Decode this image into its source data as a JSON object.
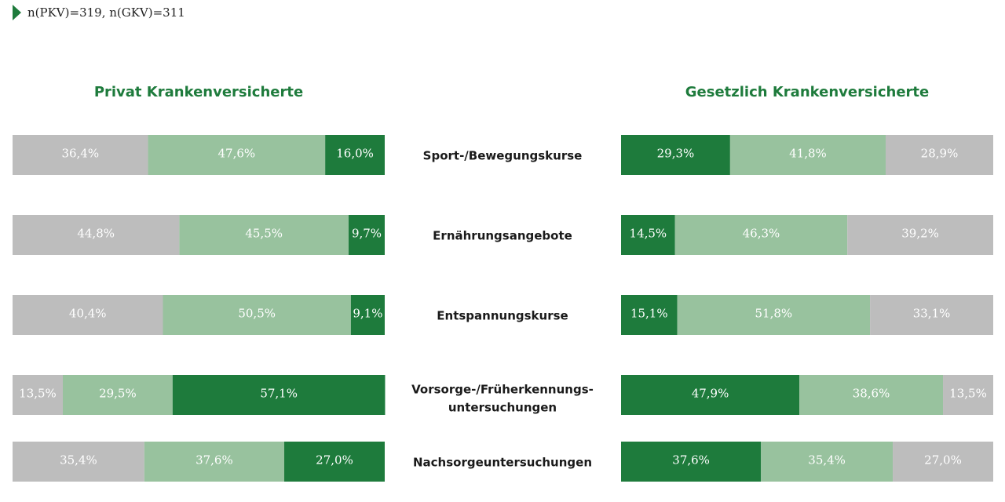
{
  "note": "n(PKV)=319, n(GKV)=311",
  "colors": {
    "gray": "#bdbdbd",
    "light_green": "#98c29e",
    "dark_green": "#1e7b3c",
    "title_green": "#1e7b3c"
  },
  "chart_data": [
    {
      "type": "bar",
      "orientation": "horizontal-stacked-100",
      "title": "Privat Krankenversicherte",
      "categories": [
        "Sport-/Bewegungskurse",
        "Ernährungsangebote",
        "Entspannungskurse",
        "Vorsorge-/Früherkennungs-untersuchungen",
        "Nachsorgeuntersuchungen"
      ],
      "series": [
        {
          "color": "gray",
          "values": [
            36.4,
            44.8,
            40.4,
            13.5,
            35.4
          ],
          "labels": [
            "36,4%",
            "44,8%",
            "40,4%",
            "13,5%",
            "35,4%"
          ]
        },
        {
          "color": "light_green",
          "values": [
            47.6,
            45.5,
            50.5,
            29.5,
            37.6
          ],
          "labels": [
            "47,6%",
            "45,5%",
            "50,5%",
            "29,5%",
            "37,6%"
          ]
        },
        {
          "color": "dark_green",
          "values": [
            16.0,
            9.7,
            9.1,
            57.1,
            27.0
          ],
          "labels": [
            "16,0%",
            "9,7%",
            "9,1%",
            "57,1%",
            "27,0%"
          ]
        }
      ]
    },
    {
      "type": "bar",
      "orientation": "horizontal-stacked-100",
      "title": "Gesetzlich Krankenversicherte",
      "categories": [
        "Sport-/Bewegungskurse",
        "Ernährungsangebote",
        "Entspannungskurse",
        "Vorsorge-/Früherkennungs-untersuchungen",
        "Nachsorgeuntersuchungen"
      ],
      "series": [
        {
          "color": "dark_green",
          "values": [
            29.3,
            14.5,
            15.1,
            47.9,
            37.6
          ],
          "labels": [
            "29,3%",
            "14,5%",
            "15,1%",
            "47,9%",
            "37,6%"
          ]
        },
        {
          "color": "light_green",
          "values": [
            41.8,
            46.3,
            51.8,
            38.6,
            35.4
          ],
          "labels": [
            "41,8%",
            "46,3%",
            "51,8%",
            "38,6%",
            "35,4%"
          ]
        },
        {
          "color": "gray",
          "values": [
            28.9,
            39.2,
            33.1,
            13.5,
            27.0
          ],
          "labels": [
            "28,9%",
            "39,2%",
            "33,1%",
            "13,5%",
            "27,0%"
          ]
        }
      ]
    }
  ]
}
